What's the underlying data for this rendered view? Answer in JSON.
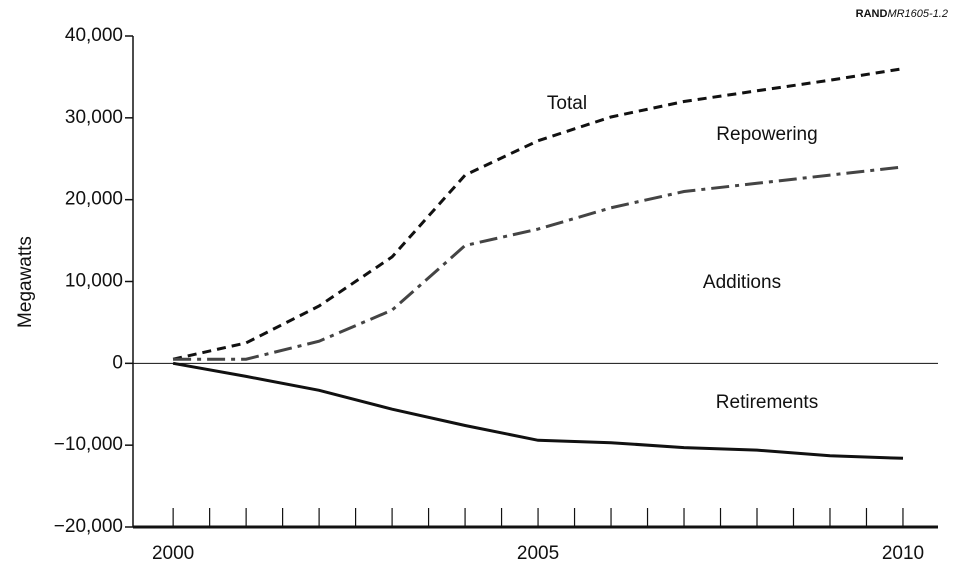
{
  "chart_data": {
    "type": "line",
    "source": {
      "org": "RAND",
      "id": "MR1605-1.2"
    },
    "y_label": "Megawatts",
    "x": [
      2000,
      2001,
      2002,
      2003,
      2004,
      2005,
      2006,
      2007,
      2008,
      2009,
      2010
    ],
    "series": [
      {
        "name": "Total",
        "color": "#111111",
        "dash": "9,6",
        "values": [
          500,
          2500,
          7000,
          13000,
          23000,
          27200,
          30100,
          32000,
          33300,
          34600,
          36000
        ]
      },
      {
        "name": "Repowering",
        "color": "#444444",
        "dash": "18,6,4,6",
        "values": [
          500,
          500,
          2700,
          6500,
          14400,
          16400,
          19000,
          21000,
          22000,
          23000,
          24000
        ]
      },
      {
        "name": "Retirements",
        "color": "#111111",
        "dash": "none",
        "values": [
          0,
          -1600,
          -3300,
          -5600,
          -7600,
          -9400,
          -9700,
          -10300,
          -10600,
          -11300,
          -11600
        ]
      }
    ],
    "annotations": [
      "Additions"
    ],
    "xlim": [
      1999.45,
      2010.48
    ],
    "xticks": [
      2000,
      2005,
      2010
    ],
    "xminorticks": [
      2000,
      2000.5,
      2001,
      2001.5,
      2002,
      2002.5,
      2003,
      2003.5,
      2004,
      2004.5,
      2005,
      2005.5,
      2006,
      2006.5,
      2007,
      2007.5,
      2008,
      2008.5,
      2009,
      2009.5,
      2010
    ],
    "ylim": [
      -20000,
      40000
    ],
    "yticks": [
      {
        "value": -20000,
        "label": "−20,000"
      },
      {
        "value": -10000,
        "label": "−10,000"
      },
      0,
      {
        "value": 10000,
        "label": "10,000"
      },
      {
        "value": 20000,
        "label": "20,000"
      },
      {
        "value": 30000,
        "label": "30,000"
      },
      {
        "value": 40000,
        "label": "40,000"
      }
    ],
    "zero_line": true
  }
}
